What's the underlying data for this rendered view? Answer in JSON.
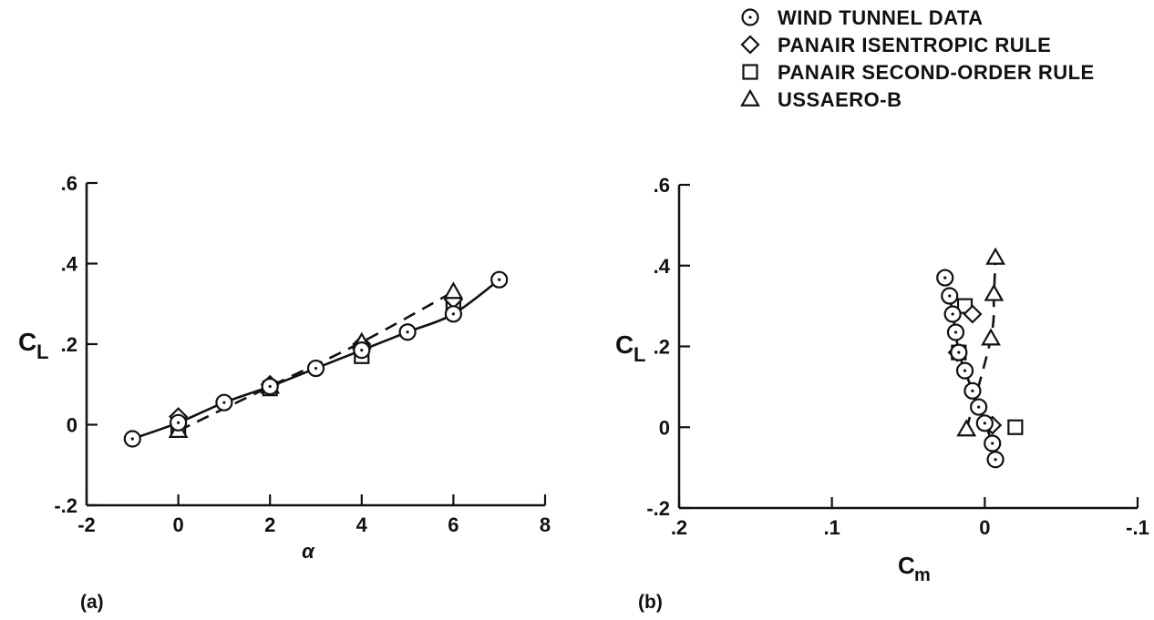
{
  "legend": [
    {
      "marker": "circle",
      "label": "WIND TUNNEL DATA"
    },
    {
      "marker": "diamond",
      "label": "PANAIR ISENTROPIC RULE"
    },
    {
      "marker": "square",
      "label": "PANAIR SECOND-ORDER RULE"
    },
    {
      "marker": "triangle",
      "label": "USSAERO-B"
    }
  ],
  "colors": {
    "ink": "#111111",
    "background": "#ffffff"
  },
  "chart_data": [
    {
      "type": "line",
      "panel": "(a)",
      "xlabel": "α",
      "ylabel": "C",
      "ylabel_sub": "L",
      "xlim": [
        -2,
        8
      ],
      "ylim": [
        -0.2,
        0.6
      ],
      "xticks": [
        -2,
        0,
        2,
        4,
        6,
        8
      ],
      "xtick_labels": [
        "-2",
        "0",
        "2",
        "4",
        "6",
        "8"
      ],
      "yticks": [
        -0.2,
        0,
        0.2,
        0.4,
        0.6
      ],
      "ytick_labels": [
        "-.2",
        "0",
        ".2",
        ".4",
        ".6"
      ],
      "series": [
        {
          "name": "WIND TUNNEL DATA",
          "marker": "circle",
          "line": "solid",
          "x": [
            -1,
            0,
            1,
            2,
            3,
            4,
            5,
            6,
            7
          ],
          "y": [
            -0.035,
            0.005,
            0.055,
            0.095,
            0.14,
            0.185,
            0.23,
            0.275,
            0.36
          ]
        },
        {
          "name": "PANAIR ISENTROPIC RULE",
          "marker": "diamond",
          "line": "none",
          "x": [
            0,
            2,
            4,
            6
          ],
          "y": [
            0.02,
            0.1,
            0.2,
            0.31
          ]
        },
        {
          "name": "PANAIR SECOND-ORDER RULE",
          "marker": "square",
          "line": "none",
          "x": [
            0,
            2,
            4,
            6
          ],
          "y": [
            -0.01,
            0.09,
            0.17,
            0.29
          ]
        },
        {
          "name": "USSAERO-B",
          "marker": "triangle",
          "line": "dashed",
          "x": [
            0,
            2,
            4,
            6
          ],
          "y": [
            -0.015,
            0.095,
            0.205,
            0.33
          ]
        }
      ]
    },
    {
      "type": "line",
      "panel": "(b)",
      "xlabel": "C",
      "xlabel_sub": "m",
      "ylabel": "C",
      "ylabel_sub": "L",
      "xlim": [
        0.2,
        -0.1
      ],
      "ylim": [
        -0.2,
        0.6
      ],
      "xticks": [
        0.2,
        0.1,
        0,
        -0.1
      ],
      "xtick_labels": [
        ".2",
        ".1",
        "0",
        "-.1"
      ],
      "yticks": [
        -0.2,
        0,
        0.2,
        0.4,
        0.6
      ],
      "ytick_labels": [
        "-.2",
        "0",
        ".2",
        ".4",
        ".6"
      ],
      "series": [
        {
          "name": "WIND TUNNEL DATA",
          "marker": "circle",
          "line": "solid",
          "x": [
            -0.007,
            -0.005,
            0.0,
            0.004,
            0.008,
            0.013,
            0.017,
            0.019,
            0.021,
            0.023
          ],
          "y": [
            -0.08,
            -0.04,
            0.01,
            0.05,
            0.09,
            0.14,
            0.185,
            0.235,
            0.28,
            0.325
          ]
        },
        {
          "name": "PANAIR ISENTROPIC RULE",
          "marker": "diamond",
          "line": "none",
          "x": [
            -0.005,
            0.018,
            0.008
          ],
          "y": [
            0.005,
            0.185,
            0.28
          ]
        },
        {
          "name": "PANAIR SECOND-ORDER RULE",
          "marker": "square",
          "line": "none",
          "x": [
            -0.02,
            0.017,
            0.013
          ],
          "y": [
            0.0,
            0.185,
            0.3
          ]
        },
        {
          "name": "USSAERO-B",
          "marker": "triangle",
          "line": "dashed",
          "x": [
            0.012,
            -0.004,
            -0.006,
            -0.007
          ],
          "y": [
            -0.005,
            0.22,
            0.33,
            0.42
          ]
        }
      ],
      "extra_circle": {
        "x": 0.026,
        "y": 0.37
      }
    }
  ]
}
